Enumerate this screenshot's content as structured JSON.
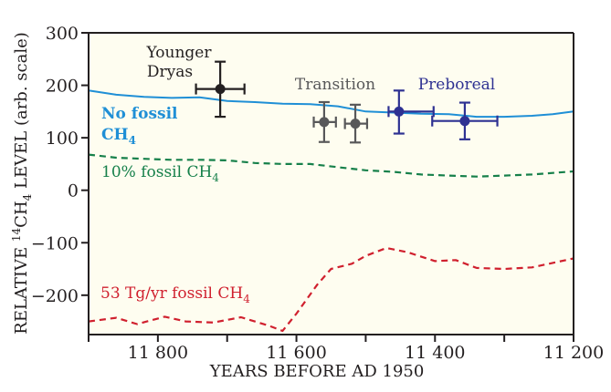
{
  "chart_data": {
    "type": "line",
    "title": "",
    "xlabel": "YEARS BEFORE AD 1950",
    "ylabel_parts": {
      "pre": "RELATIVE ",
      "sup": "14",
      "mid": "CH",
      "sub": "4",
      "post": " LEVEL (arb. scale)"
    },
    "xlim": [
      11900,
      11200
    ],
    "ylim": [
      -275,
      300
    ],
    "x_ticks": [
      11900,
      11800,
      11700,
      11600,
      11500,
      11400,
      11300,
      11200
    ],
    "x_tick_labels": [
      "",
      "11 800",
      "",
      "11 600",
      "",
      "11 400",
      "",
      "11 200"
    ],
    "y_ticks": [
      300,
      200,
      100,
      0,
      -100,
      -200
    ],
    "y_tick_labels": [
      "300",
      "200",
      "100",
      "0",
      "−100",
      "−200"
    ],
    "background": "#fefdf0",
    "grid": false,
    "series": [
      {
        "name": "No fossil CH4",
        "color": "#1f8fd6",
        "style": "solid",
        "x": [
          11900,
          11860,
          11820,
          11780,
          11740,
          11700,
          11660,
          11620,
          11580,
          11540,
          11500,
          11460,
          11420,
          11380,
          11340,
          11300,
          11260,
          11230,
          11200
        ],
        "y": [
          190,
          182,
          178,
          176,
          177,
          170,
          168,
          165,
          164,
          160,
          150,
          148,
          146,
          145,
          140,
          140,
          142,
          145,
          150
        ]
      },
      {
        "name": "10% fossil CH4",
        "color": "#16804a",
        "style": "dashed",
        "x": [
          11900,
          11860,
          11820,
          11780,
          11740,
          11700,
          11660,
          11620,
          11580,
          11540,
          11500,
          11460,
          11420,
          11380,
          11340,
          11300,
          11260,
          11200
        ],
        "y": [
          68,
          62,
          60,
          58,
          58,
          57,
          52,
          50,
          50,
          44,
          38,
          35,
          30,
          28,
          26,
          28,
          30,
          36
        ]
      },
      {
        "name": "53 Tg/yr fossil CH4",
        "color": "#d0202e",
        "style": "dashed",
        "x": [
          11900,
          11860,
          11830,
          11790,
          11760,
          11720,
          11680,
          11640,
          11620,
          11600,
          11570,
          11550,
          11520,
          11500,
          11470,
          11440,
          11400,
          11370,
          11340,
          11300,
          11260,
          11200
        ],
        "y": [
          -250,
          -243,
          -255,
          -241,
          -250,
          -252,
          -242,
          -258,
          -268,
          -235,
          -180,
          -150,
          -140,
          -125,
          -110,
          -118,
          -135,
          -133,
          -148,
          -150,
          -147,
          -130
        ]
      }
    ],
    "points": [
      {
        "group": "Younger Dryas",
        "color": "#231f20",
        "x": 11710,
        "y": 193,
        "xerr": [
          35,
          35
        ],
        "yerr": [
          53,
          52
        ]
      },
      {
        "group": "Transition",
        "color": "#58585a",
        "x": 11560,
        "y": 130,
        "xerr": [
          15,
          17
        ],
        "yerr": [
          38,
          38
        ]
      },
      {
        "group": "Transition",
        "color": "#58585a",
        "x": 11515,
        "y": 127,
        "xerr": [
          15,
          17
        ],
        "yerr": [
          36,
          36
        ]
      },
      {
        "group": "Preboreal",
        "color": "#2e3192",
        "x": 11452,
        "y": 150,
        "xerr": [
          15,
          50
        ],
        "yerr": [
          42,
          40
        ]
      },
      {
        "group": "Preboreal",
        "color": "#2e3192",
        "x": 11357,
        "y": 132,
        "xerr": [
          47,
          47
        ],
        "yerr": [
          35,
          35
        ]
      }
    ],
    "annotations": {
      "younger_dryas_line1": "Younger",
      "younger_dryas_line2": "Dryas",
      "transition": "Transition",
      "preboreal": "Preboreal",
      "no_fossil_line1": "No fossil",
      "no_fossil_line2": "CH",
      "no_fossil_sub": "4",
      "ten_pct": "10% fossil CH",
      "ten_pct_sub": "4",
      "tg": "53 Tg/yr fossil CH",
      "tg_sub": "4"
    }
  }
}
